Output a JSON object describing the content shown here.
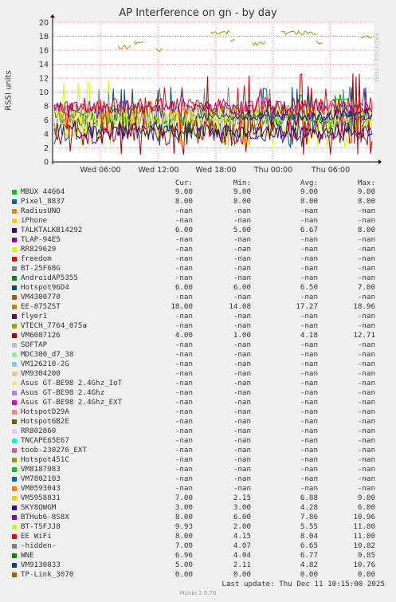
{
  "chart_data": {
    "type": "line",
    "title": "AP Interference on gn - by day",
    "ylabel": "RSSI units",
    "ylim": [
      0,
      20
    ],
    "yticks": [
      0,
      2,
      4,
      6,
      8,
      10,
      12,
      14,
      16,
      18,
      20
    ],
    "xticks": [
      "Wed 06:00",
      "Wed 12:00",
      "Wed 18:00",
      "Thu 00:00",
      "Thu 06:00"
    ],
    "grid": true,
    "legend_headers": {
      "cur": "Cur:",
      "min": "Min:",
      "avg": "Avg:",
      "max": "Max:"
    },
    "series": [
      {
        "name": "MBUX 44664",
        "color": "#00cc00",
        "cur": "9.00",
        "min": "9.00",
        "avg": "9.00",
        "max": "9.00"
      },
      {
        "name": "Pixel_8837",
        "color": "#0066b3",
        "cur": "8.00",
        "min": "8.00",
        "avg": "8.00",
        "max": "8.00"
      },
      {
        "name": "RadiusUNO",
        "color": "#ff8000",
        "cur": "-nan",
        "min": "-nan",
        "avg": "-nan",
        "max": "-nan"
      },
      {
        "name": "iPhone",
        "color": "#ffcc00",
        "cur": "-nan",
        "min": "-nan",
        "avg": "-nan",
        "max": "-nan"
      },
      {
        "name": "TALKTALKB14292",
        "color": "#330099",
        "cur": "6.00",
        "min": "5.00",
        "avg": "6.67",
        "max": "8.00"
      },
      {
        "name": "TLAP-94E5",
        "color": "#990099",
        "cur": "-nan",
        "min": "-nan",
        "avg": "-nan",
        "max": "-nan"
      },
      {
        "name": "RR829629",
        "color": "#ccff00",
        "cur": "-nan",
        "min": "-nan",
        "avg": "-nan",
        "max": "-nan"
      },
      {
        "name": "freedom",
        "color": "#ff0000",
        "cur": "-nan",
        "min": "-nan",
        "avg": "-nan",
        "max": "-nan"
      },
      {
        "name": "BT-25F68G",
        "color": "#808080",
        "cur": "-nan",
        "min": "-nan",
        "avg": "-nan",
        "max": "-nan"
      },
      {
        "name": "AndroidAP5355",
        "color": "#008f00",
        "cur": "-nan",
        "min": "-nan",
        "avg": "-nan",
        "max": "-nan"
      },
      {
        "name": "Hotspot96D4",
        "color": "#00487d",
        "cur": "6.00",
        "min": "6.00",
        "avg": "6.50",
        "max": "7.00"
      },
      {
        "name": "VM4300770",
        "color": "#b35a00",
        "cur": "-nan",
        "min": "-nan",
        "avg": "-nan",
        "max": "-nan"
      },
      {
        "name": "EE-875ZST",
        "color": "#b38f00",
        "cur": "18.00",
        "min": "14.08",
        "avg": "17.27",
        "max": "18.96"
      },
      {
        "name": "flyer1",
        "color": "#6b006b",
        "cur": "-nan",
        "min": "-nan",
        "avg": "-nan",
        "max": "-nan"
      },
      {
        "name": "VTECH_7764_075a",
        "color": "#8fb300",
        "cur": "-nan",
        "min": "-nan",
        "avg": "-nan",
        "max": "-nan"
      },
      {
        "name": "VM6087126",
        "color": "#b30000",
        "cur": "4.00",
        "min": "1.00",
        "avg": "4.18",
        "max": "12.71"
      },
      {
        "name": "SOFTAP",
        "color": "#bebebe",
        "cur": "-nan",
        "min": "-nan",
        "avg": "-nan",
        "max": "-nan"
      },
      {
        "name": "MDC300_d7_38",
        "color": "#80ff80",
        "cur": "-nan",
        "min": "-nan",
        "avg": "-nan",
        "max": "-nan"
      },
      {
        "name": "VM126210-2G",
        "color": "#80c9ff",
        "cur": "-nan",
        "min": "-nan",
        "avg": "-nan",
        "max": "-nan"
      },
      {
        "name": "VM9304200",
        "color": "#ffc080",
        "cur": "-nan",
        "min": "-nan",
        "avg": "-nan",
        "max": "-nan"
      },
      {
        "name": "Asus GT-BE98 2.4Ghz_IoT",
        "color": "#ffe680",
        "cur": "-nan",
        "min": "-nan",
        "avg": "-nan",
        "max": "-nan"
      },
      {
        "name": "Asus GT-BE98 2.4Ghz",
        "color": "#aa80ff",
        "cur": "-nan",
        "min": "-nan",
        "avg": "-nan",
        "max": "-nan"
      },
      {
        "name": "Asus GT-BE98 2.4Ghz_EXT",
        "color": "#ee00cc",
        "cur": "-nan",
        "min": "-nan",
        "avg": "-nan",
        "max": "-nan"
      },
      {
        "name": "HotspotD29A",
        "color": "#ff8080",
        "cur": "-nan",
        "min": "-nan",
        "avg": "-nan",
        "max": "-nan"
      },
      {
        "name": "Hotspot6B2E",
        "color": "#666600",
        "cur": "-nan",
        "min": "-nan",
        "avg": "-nan",
        "max": "-nan"
      },
      {
        "name": "RR802860",
        "color": "#ffbfff",
        "cur": "-nan",
        "min": "-nan",
        "avg": "-nan",
        "max": "-nan"
      },
      {
        "name": "TNCAPE65E67",
        "color": "#00ffcc",
        "cur": "-nan",
        "min": "-nan",
        "avg": "-nan",
        "max": "-nan"
      },
      {
        "name": "toob-230276_EXT",
        "color": "#cc6699",
        "cur": "-nan",
        "min": "-nan",
        "avg": "-nan",
        "max": "-nan"
      },
      {
        "name": "Hotspot451C",
        "color": "#999900",
        "cur": "-nan",
        "min": "-nan",
        "avg": "-nan",
        "max": "-nan"
      },
      {
        "name": "VM8187983",
        "color": "#00cc00",
        "cur": "-nan",
        "min": "-nan",
        "avg": "-nan",
        "max": "-nan"
      },
      {
        "name": "VM7802103",
        "color": "#0066b3",
        "cur": "-nan",
        "min": "-nan",
        "avg": "-nan",
        "max": "-nan"
      },
      {
        "name": "VM0593043",
        "color": "#ff8000",
        "cur": "-nan",
        "min": "-nan",
        "avg": "-nan",
        "max": "-nan"
      },
      {
        "name": "VM5958831",
        "color": "#ffcc00",
        "cur": "7.00",
        "min": "2.15",
        "avg": "6.88",
        "max": "9.00"
      },
      {
        "name": "SKY8QWGM",
        "color": "#330099",
        "cur": "3.00",
        "min": "3.00",
        "avg": "4.28",
        "max": "6.00"
      },
      {
        "name": "BTHub6-8S8X",
        "color": "#990099",
        "cur": "8.00",
        "min": "6.00",
        "avg": "7.86",
        "max": "10.96"
      },
      {
        "name": "BT-T5FJJ8",
        "color": "#ccff00",
        "cur": "9.93",
        "min": "2.00",
        "avg": "5.55",
        "max": "11.80"
      },
      {
        "name": "EE WiFi",
        "color": "#ff0000",
        "cur": "8.00",
        "min": "4.15",
        "avg": "8.04",
        "max": "11.00"
      },
      {
        "name": "-hidden-",
        "color": "#808080",
        "cur": "7.00",
        "min": "4.07",
        "avg": "6.65",
        "max": "10.82"
      },
      {
        "name": "WNE",
        "color": "#008f00",
        "cur": "6.96",
        "min": "4.04",
        "avg": "6.77",
        "max": "9.85"
      },
      {
        "name": "VM9130833",
        "color": "#00487d",
        "cur": "5.00",
        "min": "2.11",
        "avg": "4.82",
        "max": "10.76"
      },
      {
        "name": "TP-Link_3070",
        "color": "#b35a00",
        "cur": "0.00",
        "min": "0.00",
        "avg": "0.00",
        "max": "0.00"
      }
    ]
  },
  "footer": {
    "last_update": "Last update: Thu Dec 11 10:15:00 2025",
    "munin": "Munin 2.0.76"
  },
  "watermark": "RRDTOOL / TOBI OETIKER"
}
